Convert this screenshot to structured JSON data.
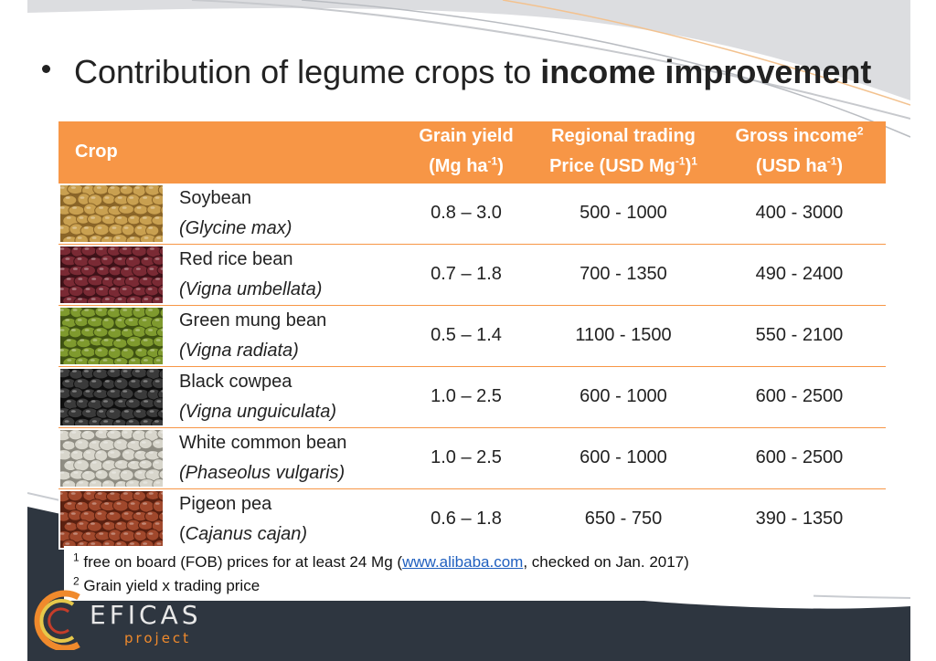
{
  "title": {
    "prefix": "Contribution of legume crops to ",
    "bold": "income improvement"
  },
  "table": {
    "headers": {
      "crop": "Crop",
      "yield_line1": "Grain yield",
      "yield_line2_pre": "(Mg ha",
      "yield_line2_sup": "-1",
      "yield_line2_post": ")",
      "price_line1": "Regional trading",
      "price_line2_pre": "Price (USD Mg",
      "price_line2_sup": "-1",
      "price_line2_post": ")",
      "price_note_sup": "1",
      "income_line1": "Gross income",
      "income_note_sup": "2",
      "income_line2_pre": "(USD ha",
      "income_line2_sup": "-1",
      "income_line2_post": ")"
    },
    "rows": [
      {
        "name": "Soybean",
        "latin": "(Glycine max)",
        "yield": "0.8 – 3.0",
        "price": "500 - 1000",
        "income": "400 - 3000",
        "image": "soybean-photo",
        "bean_color": "#c9a050",
        "bean_dark": "#8a6528"
      },
      {
        "name": "Red rice bean",
        "latin": "(Vigna umbellata)",
        "yield": "0.7 – 1.8",
        "price": "700 - 1350",
        "income": "490 - 2400",
        "image": "red-rice-bean-photo",
        "bean_color": "#7a2a34",
        "bean_dark": "#3e1218"
      },
      {
        "name": "Green mung bean",
        "latin": "(Vigna radiata)",
        "yield": "0.5 – 1.4",
        "price": "1100 - 1500",
        "income": "550 - 2100",
        "image": "mung-bean-photo",
        "bean_color": "#7f9a2e",
        "bean_dark": "#3f5212"
      },
      {
        "name": "Black cowpea",
        "latin": "(Vigna unguiculata)",
        "yield": "1.0 – 2.5",
        "price": "600 - 1000",
        "income": "600 - 2500",
        "image": "black-cowpea-photo",
        "bean_color": "#3a3a3a",
        "bean_dark": "#0f0f0f"
      },
      {
        "name": "White common bean",
        "latin": "(Phaseolus vulgaris)",
        "yield": "1.0 – 2.5",
        "price": "600 - 1000",
        "income": "600 - 2500",
        "image": "white-bean-photo",
        "bean_color": "#d8d6cc",
        "bean_dark": "#8e8c82"
      },
      {
        "name": "Pigeon pea",
        "latin_pre": "(",
        "latin": "Cajanus cajan)",
        "yield": "0.6 – 1.8",
        "price": "650 - 750",
        "income": "390 - 1350",
        "image": "pigeon-pea-photo",
        "bean_color": "#a0482c",
        "bean_dark": "#5a2010"
      }
    ]
  },
  "footnotes": {
    "note1_sup": "1",
    "note1_pre": " free on board (FOB) prices for at least 24 Mg (",
    "note1_link": "www.alibaba.com",
    "note1_post": ", checked on Jan. 2017)",
    "note2_sup": "2",
    "note2_text": " Grain yield x trading price"
  },
  "logo": {
    "name": "EFICAS",
    "sub": "project",
    "accent": "#f08a2c"
  },
  "colors": {
    "header_orange": "#f79646",
    "bottom_band": "#2e3640"
  }
}
